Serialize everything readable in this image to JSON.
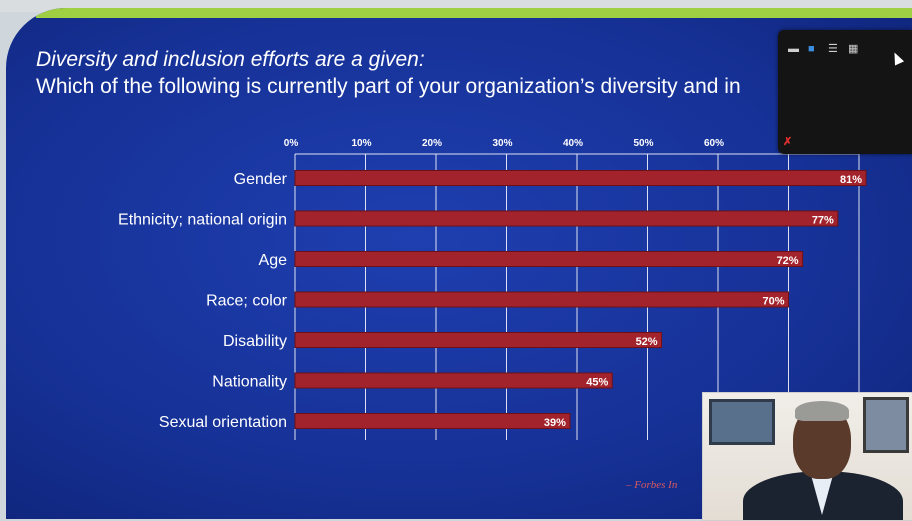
{
  "slide": {
    "title_line1": "Diversity and inclusion efforts are a given:",
    "title_line2": "Which of the following is currently part of your organization’s diversity and in",
    "source": "– Forbes In"
  },
  "colors": {
    "background": "#163196",
    "bar": "#a3232c",
    "bar_border": "#6e1016",
    "grid": "#ffffff",
    "accent_stripe": "#9fcf42"
  },
  "chart_data": {
    "type": "bar",
    "orientation": "horizontal",
    "categories": [
      "Gender",
      "Ethnicity; national origin",
      "Age",
      "Race; color",
      "Disability",
      "Nationality",
      "Sexual orientation"
    ],
    "values": [
      81,
      77,
      72,
      70,
      52,
      45,
      39
    ],
    "value_labels": [
      "81%",
      "77%",
      "72%",
      "70%",
      "52%",
      "45%",
      "39%"
    ],
    "x_ticks": [
      "0%",
      "10%",
      "20%",
      "30%",
      "40%",
      "50%",
      "60%"
    ],
    "xlim": [
      0,
      80
    ],
    "grid": true,
    "title": "",
    "xlabel": "",
    "ylabel": ""
  },
  "window_controls": {
    "icons": [
      "minimize-icon",
      "layout-icon",
      "panel-icon",
      "grid-icon"
    ],
    "glyphs": [
      "▬",
      "■",
      "☰",
      "▦"
    ],
    "close_glyph": "✗"
  }
}
